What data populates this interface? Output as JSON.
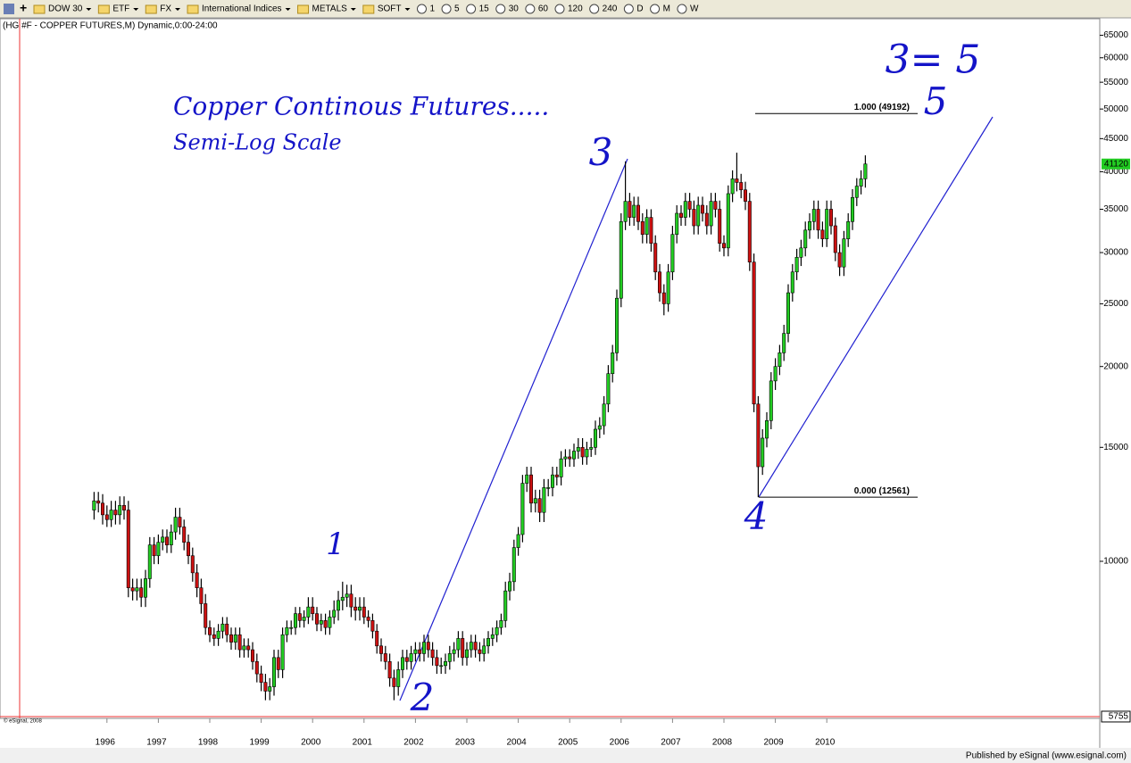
{
  "toolbar": {
    "menus": [
      "DOW 30",
      "ETF",
      "FX",
      "International Indices",
      "METALS",
      "SOFT"
    ],
    "intervals": [
      "1",
      "5",
      "15",
      "30",
      "60",
      "120",
      "240",
      "D",
      "M",
      "W"
    ]
  },
  "footer": "Published by eSignal (www.esignal.com)",
  "chart_data": {
    "type": "candlestick",
    "header": "(HG #F - COPPER FUTURES,M) Dynamic,0:00-24:00",
    "title": "Copper Continous Futures.....",
    "subtitle": "Semi-Log Scale",
    "copyright": "© eSignal, 2008",
    "log_scale": true,
    "up_color": "#22cc22",
    "down_color": "#cc1111",
    "annotation_color": "#1414c8",
    "ylim": [
      5700,
      67000
    ],
    "yticks": [
      10000,
      15000,
      20000,
      25000,
      30000,
      35000,
      40000,
      45000,
      50000,
      55000,
      60000,
      65000
    ],
    "last_price": 41120,
    "cursor_price": 5755,
    "fib_levels": [
      {
        "value": 49192,
        "label": "1.000 (49192)",
        "color": "#ee1111"
      },
      {
        "value": 12561,
        "label": "0.000 (12561)",
        "color": "#000000"
      }
    ],
    "wave_labels": [
      "1",
      "2",
      "3",
      "4",
      "5",
      "3= 5"
    ],
    "categories": [
      null,
      null,
      null,
      "1996",
      null,
      null,
      null,
      null,
      null,
      null,
      null,
      null,
      null,
      null,
      null,
      "1997",
      null,
      null,
      null,
      null,
      null,
      null,
      null,
      null,
      null,
      null,
      null,
      "1998",
      null,
      null,
      null,
      null,
      null,
      null,
      null,
      null,
      null,
      null,
      null,
      "1999",
      null,
      null,
      null,
      null,
      null,
      null,
      null,
      null,
      null,
      null,
      null,
      "2000",
      null,
      null,
      null,
      null,
      null,
      null,
      null,
      null,
      null,
      null,
      null,
      "2001",
      null,
      null,
      null,
      null,
      null,
      null,
      null,
      null,
      null,
      null,
      null,
      "2002",
      null,
      null,
      null,
      null,
      null,
      null,
      null,
      null,
      null,
      null,
      null,
      "2003",
      null,
      null,
      null,
      null,
      null,
      null,
      null,
      null,
      null,
      null,
      null,
      "2004",
      null,
      null,
      null,
      null,
      null,
      null,
      null,
      null,
      null,
      null,
      null,
      "2005",
      null,
      null,
      null,
      null,
      null,
      null,
      null,
      null,
      null,
      null,
      null,
      "2006",
      null,
      null,
      null,
      null,
      null,
      null,
      null,
      null,
      null,
      null,
      null,
      "2007",
      null,
      null,
      null,
      null,
      null,
      null,
      null,
      null,
      null,
      null,
      null,
      "2008",
      null,
      null,
      null,
      null,
      null,
      null,
      null,
      null,
      null,
      null,
      null,
      "2009",
      null,
      null,
      null,
      null,
      null,
      null,
      null,
      null,
      null,
      null,
      null,
      "2010",
      null,
      null,
      null,
      null,
      null,
      null,
      null,
      null,
      null
    ],
    "open": [
      12000,
      12400,
      12300,
      11800,
      11600,
      12000,
      11800,
      12200,
      12000,
      9100,
      9000,
      9100,
      8800,
      9400,
      10600,
      10200,
      10700,
      10900,
      10600,
      11100,
      11700,
      11300,
      10700,
      10200,
      9600,
      9100,
      8600,
      7900,
      7700,
      7600,
      7800,
      8000,
      7700,
      7500,
      7700,
      7300,
      7400,
      7300,
      7000,
      6700,
      6500,
      6300,
      6400,
      7100,
      6800,
      7700,
      7900,
      7900,
      8300,
      8100,
      8200,
      8500,
      8300,
      8000,
      8100,
      7900,
      8200,
      8400,
      8700,
      8800,
      8900,
      8500,
      8400,
      8500,
      8200,
      8100,
      7800,
      7400,
      7200,
      7000,
      6600,
      6400,
      6800,
      7100,
      7000,
      7200,
      7300,
      7200,
      7500,
      7300,
      7100,
      6900,
      6900,
      7000,
      7200,
      7300,
      7600,
      7100,
      7300,
      7500,
      7300,
      7200,
      7400,
      7600,
      7700,
      7900,
      8100,
      9000,
      9300,
      10500,
      11000,
      13200,
      13600,
      12300,
      12500,
      11900,
      13000,
      13000,
      13600,
      13500,
      14400,
      14500,
      14400,
      14800,
      15000,
      14500,
      14900,
      15000,
      16000,
      16200,
      17500,
      19500,
      21000,
      25500,
      33500,
      36000,
      34000,
      35500,
      33500,
      32000,
      34000,
      31000,
      28000,
      26000,
      25000,
      28000,
      32000,
      34500,
      34000,
      36000,
      35000,
      33000,
      35500,
      34500,
      33000,
      36000,
      35000,
      31000,
      30500,
      37000,
      39000,
      38500,
      37500,
      36000,
      29000,
      17500,
      14000,
      15500,
      16500,
      19000,
      20000,
      21000,
      22500,
      26000,
      28000,
      29500,
      30500,
      32500,
      33500,
      35000,
      32500,
      31500,
      35000,
      33000,
      30000,
      28500,
      31500,
      33500,
      36500,
      38000,
      39000
    ],
    "high": [
      12800,
      12800,
      12700,
      12200,
      12400,
      12400,
      12600,
      12600,
      12400,
      9400,
      9400,
      9400,
      9700,
      10900,
      10900,
      11000,
      11200,
      11200,
      11400,
      12100,
      12100,
      11600,
      11000,
      10500,
      9900,
      9400,
      8900,
      8100,
      7900,
      8000,
      8200,
      8200,
      7900,
      7900,
      7900,
      7600,
      7600,
      7500,
      7200,
      6900,
      6700,
      6600,
      7300,
      7300,
      7900,
      8100,
      8100,
      8500,
      8500,
      8400,
      8800,
      8800,
      8500,
      8300,
      8300,
      8400,
      8700,
      9000,
      9300,
      9200,
      9200,
      8800,
      8800,
      8800,
      8400,
      8300,
      8000,
      7600,
      7400,
      7200,
      6800,
      7000,
      7300,
      7300,
      7400,
      7500,
      7500,
      7700,
      7700,
      7500,
      7300,
      7100,
      7200,
      7400,
      7500,
      7800,
      7800,
      7500,
      7700,
      7700,
      7500,
      7600,
      7800,
      7900,
      8100,
      8300,
      9300,
      9600,
      10800,
      11300,
      13600,
      14000,
      14000,
      12900,
      12900,
      13400,
      13400,
      14000,
      14000,
      14800,
      14900,
      14900,
      15200,
      15500,
      15500,
      15300,
      15500,
      16500,
      16700,
      18000,
      20100,
      21600,
      26300,
      34500,
      41500,
      37100,
      36600,
      36600,
      34500,
      35000,
      35000,
      31900,
      28800,
      26800,
      28800,
      33000,
      35500,
      35500,
      37100,
      37100,
      36100,
      36600,
      36600,
      35500,
      37100,
      37100,
      36100,
      31900,
      38100,
      40200,
      42800,
      39700,
      38600,
      37100,
      29900,
      18000,
      16000,
      17000,
      19600,
      20600,
      21600,
      23200,
      26800,
      28800,
      30400,
      31400,
      33500,
      34500,
      36100,
      36100,
      33500,
      36100,
      36100,
      34000,
      30900,
      32400,
      34500,
      37600,
      39100,
      40200,
      42400
    ],
    "low": [
      11600,
      11900,
      11400,
      11300,
      11300,
      11400,
      11400,
      11600,
      8800,
      8700,
      8700,
      8500,
      8500,
      9100,
      9900,
      9900,
      10400,
      10300,
      10300,
      10800,
      11000,
      10400,
      9900,
      9300,
      8800,
      8300,
      7700,
      7500,
      7400,
      7400,
      7600,
      7500,
      7300,
      7300,
      7100,
      7100,
      7100,
      6800,
      6500,
      6300,
      6100,
      6100,
      6200,
      6600,
      6600,
      7500,
      7700,
      7700,
      7900,
      7900,
      8000,
      8100,
      7800,
      7800,
      7700,
      7700,
      8000,
      8100,
      8400,
      8500,
      8200,
      8100,
      8100,
      8000,
      7900,
      7600,
      7200,
      7000,
      6800,
      6400,
      6100,
      6200,
      6600,
      6800,
      6800,
      7000,
      7000,
      7000,
      7100,
      6900,
      6700,
      6700,
      6700,
      6800,
      7000,
      7100,
      6900,
      6900,
      7100,
      7100,
      7000,
      7000,
      7200,
      7400,
      7500,
      7700,
      7900,
      8700,
      9000,
      10200,
      10700,
      12800,
      11900,
      11900,
      11500,
      11500,
      12600,
      12600,
      13100,
      13100,
      14000,
      14000,
      14000,
      14400,
      14100,
      14100,
      14500,
      14600,
      15500,
      15700,
      17000,
      18900,
      20400,
      24700,
      32500,
      33000,
      33000,
      32500,
      31000,
      31000,
      30100,
      27200,
      25200,
      24000,
      24300,
      27200,
      31000,
      33000,
      33000,
      34000,
      32000,
      32000,
      33500,
      32000,
      32000,
      34000,
      30100,
      29600,
      29600,
      35900,
      37300,
      36400,
      34900,
      28100,
      17000,
      12561,
      13600,
      15000,
      16000,
      18400,
      19400,
      20400,
      21800,
      25200,
      27200,
      28600,
      29600,
      31500,
      32500,
      31500,
      30600,
      30600,
      32000,
      29100,
      27600,
      27600,
      30600,
      32500,
      35400,
      36900,
      37800
    ],
    "close": [
      12400,
      12300,
      11800,
      11600,
      12000,
      11800,
      12200,
      12000,
      9100,
      9000,
      9100,
      8800,
      9400,
      10600,
      10200,
      10700,
      10900,
      10600,
      11100,
      11700,
      11300,
      10700,
      10200,
      9600,
      9100,
      8600,
      7900,
      7700,
      7600,
      7800,
      8000,
      7700,
      7500,
      7700,
      7300,
      7400,
      7300,
      7000,
      6700,
      6500,
      6300,
      6400,
      7100,
      6800,
      7700,
      7900,
      7900,
      8300,
      8100,
      8200,
      8500,
      8300,
      8000,
      8100,
      7900,
      8200,
      8400,
      8700,
      8800,
      8900,
      8500,
      8400,
      8500,
      8200,
      8100,
      7800,
      7400,
      7200,
      7000,
      6600,
      6400,
      6800,
      7100,
      7000,
      7200,
      7300,
      7200,
      7500,
      7300,
      7100,
      6900,
      6900,
      7000,
      7200,
      7300,
      7600,
      7100,
      7300,
      7500,
      7300,
      7200,
      7400,
      7600,
      7700,
      7900,
      8100,
      9000,
      9300,
      10500,
      11000,
      13200,
      13600,
      12300,
      12500,
      11900,
      13000,
      13000,
      13600,
      13500,
      14400,
      14500,
      14400,
      14800,
      15000,
      14500,
      14900,
      15000,
      16000,
      16200,
      17500,
      19500,
      21000,
      25500,
      33500,
      36000,
      34000,
      35500,
      33500,
      32000,
      34000,
      31000,
      28000,
      26000,
      25000,
      28000,
      32000,
      34500,
      34000,
      36000,
      35000,
      33000,
      35500,
      34500,
      33000,
      36000,
      35000,
      31000,
      30500,
      37000,
      39000,
      38500,
      37500,
      36000,
      29000,
      17500,
      14000,
      15500,
      16500,
      19000,
      20000,
      21000,
      22500,
      26000,
      28000,
      29500,
      30500,
      32500,
      33500,
      35000,
      32500,
      31500,
      35000,
      33000,
      30000,
      28500,
      31500,
      33500,
      36500,
      38000,
      39000,
      41120
    ]
  }
}
